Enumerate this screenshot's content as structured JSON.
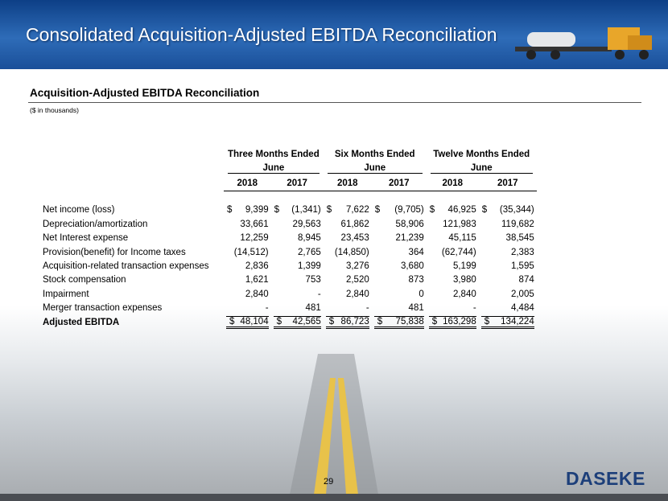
{
  "header": {
    "title": "Consolidated Acquisition-Adjusted EBITDA Reconciliation"
  },
  "section": {
    "title": "Acquisition-Adjusted EBITDA Reconciliation",
    "note": "($ in thousands)"
  },
  "table": {
    "groups": [
      {
        "title": "Three Months Ended",
        "month": "June"
      },
      {
        "title": "Six Months Ended",
        "month": "June"
      },
      {
        "title": "Twelve Months Ended",
        "month": "June"
      }
    ],
    "years": [
      "2018",
      "2017",
      "2018",
      "2017",
      "2018",
      "2017"
    ],
    "rows": [
      {
        "label": "Net income (loss)",
        "currency": "$",
        "values": [
          "9,399",
          "(1,341)",
          "7,622",
          "(9,705)",
          "46,925",
          "(35,344)"
        ]
      },
      {
        "label": "Depreciation/amortization",
        "values": [
          "33,661",
          "29,563",
          "61,862",
          "58,906",
          "121,983",
          "119,682"
        ]
      },
      {
        "label": "Net Interest expense",
        "values": [
          "12,259",
          "8,945",
          "23,453",
          "21,239",
          "45,115",
          "38,545"
        ]
      },
      {
        "label": "Provision(benefit) for Income taxes",
        "values": [
          "(14,512)",
          "2,765",
          "(14,850)",
          "364",
          "(62,744)",
          "2,383"
        ]
      },
      {
        "label": "Acquisition-related transaction expenses",
        "values": [
          "2,836",
          "1,399",
          "3,276",
          "3,680",
          "5,199",
          "1,595"
        ]
      },
      {
        "label": "Stock compensation",
        "values": [
          "1,621",
          "753",
          "2,520",
          "873",
          "3,980",
          "874"
        ]
      },
      {
        "label": "Impairment",
        "values": [
          "2,840",
          "-",
          "2,840",
          "0",
          "2,840",
          "2,005"
        ]
      },
      {
        "label": "Merger transaction expenses",
        "values": [
          "-",
          "481",
          "-",
          "481",
          "-",
          "4,484"
        ]
      },
      {
        "label": "Adjusted EBITDA",
        "currency": "$",
        "total": true,
        "values": [
          "48,104",
          "42,565",
          "86,723",
          "75,838",
          "163,298",
          "134,224"
        ]
      }
    ]
  },
  "footer": {
    "page": "29",
    "logo": "DASEKE"
  }
}
